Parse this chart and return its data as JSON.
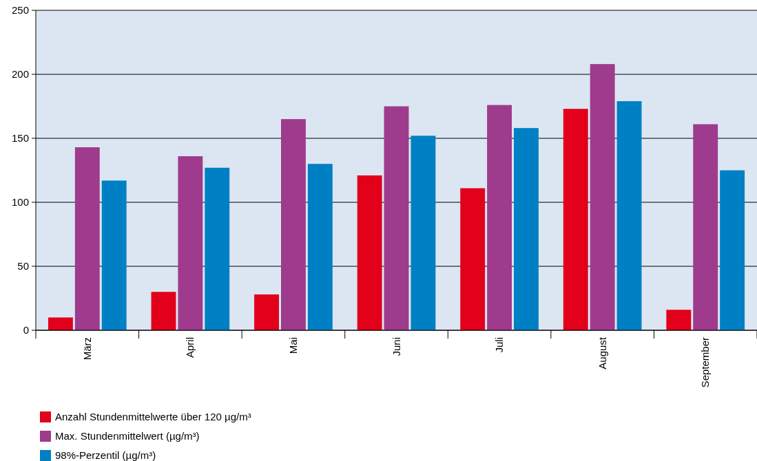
{
  "chart_data": {
    "type": "bar",
    "categories": [
      "März",
      "April",
      "Mai",
      "Juni",
      "Juli",
      "August",
      "September"
    ],
    "series": [
      {
        "name": "Anzahl Stundenmittelwerte über 120 µg/m³",
        "color": "#e2001a",
        "values": [
          10,
          30,
          28,
          121,
          111,
          173,
          16
        ]
      },
      {
        "name": "Max. Stundenmittelwert (µg/m³)",
        "color": "#9e3b8c",
        "values": [
          143,
          136,
          165,
          175,
          176,
          208,
          161
        ]
      },
      {
        "name": "98%-Perzentil (µg/m³)",
        "color": "#0080c4",
        "values": [
          117,
          127,
          130,
          152,
          158,
          179,
          125
        ]
      }
    ],
    "ylim": [
      0,
      250
    ],
    "yticks": [
      0,
      50,
      100,
      150,
      200,
      250
    ],
    "grid": "y",
    "legend": "bottom left"
  }
}
